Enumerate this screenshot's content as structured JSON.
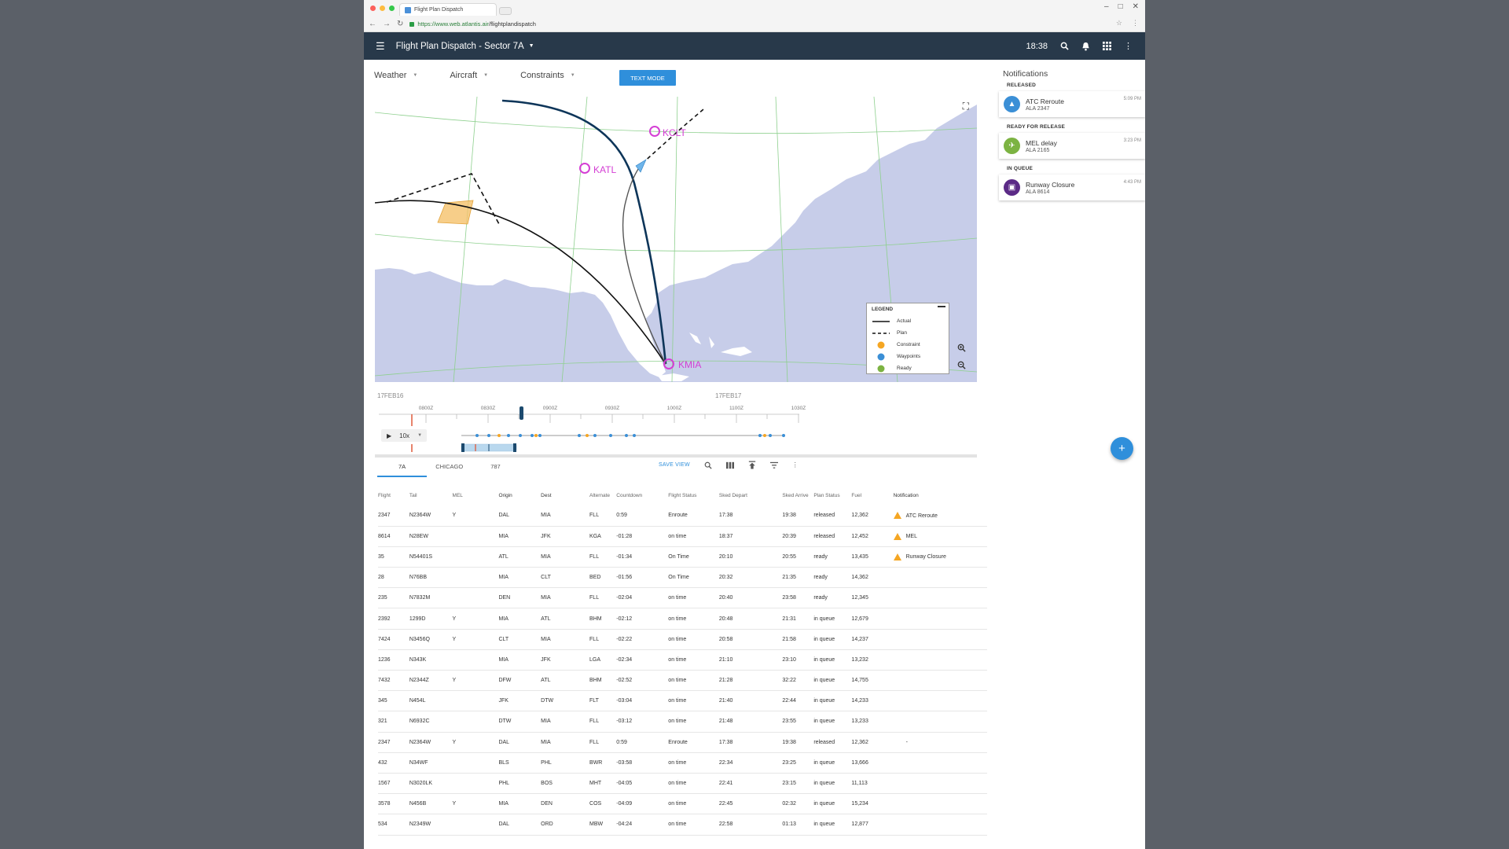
{
  "browser": {
    "tab_title": "Flight Plan Dispatch",
    "url_scheme": "https://",
    "url_host": "www.web.atlantis.air",
    "url_path": "/flightplandispatch"
  },
  "header": {
    "title": "Flight Plan Dispatch - Sector 7A",
    "time": "18:38"
  },
  "filters": {
    "weather": "Weather",
    "aircraft": "Aircraft",
    "constraints": "Constraints",
    "text_mode": "TEXT MODE"
  },
  "map": {
    "airports": [
      "KCLT",
      "KATL",
      "KMIA"
    ],
    "legend": {
      "title": "LEGEND",
      "items": [
        {
          "label": "Actual",
          "symbol": "solid-line"
        },
        {
          "label": "Plan",
          "symbol": "dashed-line"
        },
        {
          "label": "Constraint",
          "color": "#f5a623"
        },
        {
          "label": "Waypoints",
          "color": "#3b8fd6"
        },
        {
          "label": "Ready",
          "color": "#7cb342"
        }
      ]
    }
  },
  "timeline": {
    "date_start": "17FEB16",
    "date_end": "17FEB17",
    "ticks": [
      "0800Z",
      "0830Z",
      "0900Z",
      "0930Z",
      "1000Z",
      "1100Z",
      "1030Z"
    ],
    "speed": "10x"
  },
  "table_tabs": [
    "7A",
    "CHICAGO",
    "787"
  ],
  "toolbar": {
    "save_view": "SAVE VIEW"
  },
  "table": {
    "columns": [
      "Flight",
      "Tail",
      "MEL",
      "Origin",
      "Dest",
      "Alternate",
      "Countdown",
      "Flight Status",
      "Sked Depart",
      "Sked Arrive",
      "Plan Status",
      "Fuel",
      "Notification"
    ],
    "rows": [
      [
        "2347",
        "N2364W",
        "Y",
        "DAL",
        "MIA",
        "FLL",
        "0:59",
        "Enroute",
        "17:38",
        "19:38",
        "released",
        "12,362",
        "ATC Reroute"
      ],
      [
        "8614",
        "N28EW",
        "",
        "MIA",
        "JFK",
        "KGA",
        "-01:28",
        "on time",
        "18:37",
        "20:39",
        "released",
        "12,452",
        "MEL"
      ],
      [
        "35",
        "N54401S",
        "",
        "ATL",
        "MIA",
        "FLL",
        "-01:34",
        "On Time",
        "20:10",
        "20:55",
        "ready",
        "13,435",
        "Runway Closure"
      ],
      [
        "28",
        "N76BB",
        "",
        "MIA",
        "CLT",
        "BED",
        "-01:56",
        "On Time",
        "20:32",
        "21:35",
        "ready",
        "14,362",
        ""
      ],
      [
        "235",
        "N7832M",
        "",
        "DEN",
        "MIA",
        "FLL",
        "-02:04",
        "on time",
        "20:40",
        "23:58",
        "ready",
        "12,345",
        ""
      ],
      [
        "2392",
        "1299D",
        "Y",
        "MIA",
        "ATL",
        "BHM",
        "-02:12",
        "on time",
        "20:48",
        "21:31",
        "in queue",
        "12,679",
        ""
      ],
      [
        "7424",
        "N3456Q",
        "Y",
        "CLT",
        "MIA",
        "FLL",
        "-02:22",
        "on time",
        "20:58",
        "21:58",
        "in queue",
        "14,237",
        ""
      ],
      [
        "1236",
        "N343K",
        "",
        "MIA",
        "JFK",
        "LGA",
        "-02:34",
        "on time",
        "21:10",
        "23:10",
        "in queue",
        "13,232",
        ""
      ],
      [
        "7432",
        "N2344Z",
        "Y",
        "DFW",
        "ATL",
        "BHM",
        "-02:52",
        "on time",
        "21:28",
        "32:22",
        "in queue",
        "14,755",
        ""
      ],
      [
        "345",
        "N454L",
        "",
        "JFK",
        "DTW",
        "FLT",
        "-03:04",
        "on time",
        "21:40",
        "22:44",
        "in queue",
        "14,233",
        ""
      ],
      [
        "321",
        "N6932C",
        "",
        "DTW",
        "MIA",
        "FLL",
        "-03:12",
        "on time",
        "21:48",
        "23:55",
        "in queue",
        "13,233",
        ""
      ],
      [
        "2347",
        "N2364W",
        "Y",
        "DAL",
        "MIA",
        "FLL",
        "0:59",
        "Enroute",
        "17:38",
        "19:38",
        "released",
        "12,362",
        "-"
      ],
      [
        "432",
        "N34WF",
        "",
        "BLS",
        "PHL",
        "BWR",
        "-03:58",
        "on time",
        "22:34",
        "23:25",
        "in queue",
        "13,666",
        ""
      ],
      [
        "1567",
        "N3020LK",
        "",
        "PHL",
        "BOS",
        "MHT",
        "-04:05",
        "on time",
        "22:41",
        "23:15",
        "in queue",
        "11,113",
        ""
      ],
      [
        "3578",
        "N456B",
        "Y",
        "MIA",
        "DEN",
        "COS",
        "-04:09",
        "on time",
        "22:45",
        "02:32",
        "in queue",
        "15,234",
        ""
      ],
      [
        "534",
        "N2349W",
        "",
        "DAL",
        "ORD",
        "MBW",
        "-04:24",
        "on time",
        "22:58",
        "01:13",
        "in queue",
        "12,877",
        ""
      ]
    ],
    "warn_rows": [
      0,
      1,
      2
    ]
  },
  "notifications": {
    "title": "Notifications",
    "sections": [
      {
        "label": "RELEASED",
        "items": [
          {
            "title": "ATC Reroute",
            "sub": "ALA 2347",
            "time": "5:09 PM",
            "color": "#3b8fd6",
            "icon": "navigation-arrow-icon"
          }
        ]
      },
      {
        "label": "READY FOR RELEASE",
        "items": [
          {
            "title": "MEL delay",
            "sub": "ALA 2165",
            "time": "3:23 PM",
            "color": "#7cb342",
            "icon": "airplane-icon"
          }
        ]
      },
      {
        "label": "IN QUEUE",
        "items": [
          {
            "title": "Runway Closure",
            "sub": "ALA 8614",
            "time": "4:43 PM",
            "color": "#5b2a86",
            "icon": "runway-icon"
          }
        ]
      }
    ]
  },
  "colors": {
    "appbar": "#28394a",
    "accent": "#2f8fdb",
    "airport_label": "#d43fd4",
    "water": "#c7cde9"
  }
}
